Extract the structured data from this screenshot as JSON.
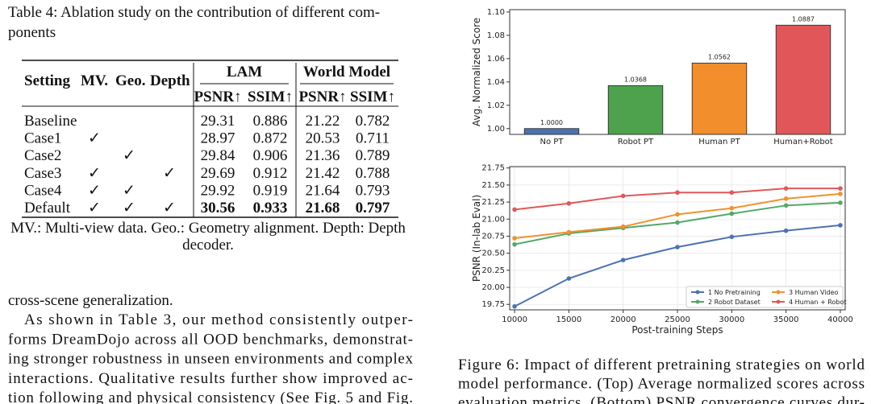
{
  "table_caption": [
    "Table 4: Ablation study on the contribution of different com-",
    "ponents"
  ],
  "table": {
    "header": [
      "Setting",
      "MV.",
      "Geo.",
      "Depth"
    ],
    "groups": [
      "LAM",
      "World Model"
    ],
    "subheader": [
      "PSNR↑",
      "SSIM↑",
      "PSNR↑",
      "SSIM↑"
    ],
    "rows": [
      [
        "Baseline",
        null,
        null,
        null,
        "29.31",
        "0.886",
        "21.22",
        "0.782"
      ],
      [
        "Case1",
        "✓",
        null,
        null,
        "28.97",
        "0.872",
        "20.53",
        "0.711"
      ],
      [
        "Case2",
        null,
        "✓",
        null,
        "29.84",
        "0.906",
        "21.36",
        "0.789"
      ],
      [
        "Case3",
        "✓",
        null,
        "✓",
        "29.69",
        "0.912",
        "21.42",
        "0.788"
      ],
      [
        "Case4",
        "✓",
        "✓",
        null,
        "29.92",
        "0.919",
        "21.64",
        "0.793"
      ],
      [
        "Default",
        "✓",
        "✓",
        "✓",
        "30.56",
        "0.933",
        "21.68",
        "0.797"
      ]
    ]
  },
  "table_note": [
    "MV.: Multi-view data. Geo.: Geometry alignment. Depth: Depth",
    "decoder."
  ],
  "body_text": [
    "cross-scene generalization.",
    "As shown in Table 3, our method consistently outper-",
    "forms DreamDojo across all OOD benchmarks, demonstrat-",
    "ing stronger robustness in unseen environments and complex",
    "interactions. Qualitative results further show improved ac-",
    "tion following and physical consistency (See Fig. 5 and Fig."
  ],
  "chart_data": [
    {
      "type": "bar",
      "ylabel": "Avg. Normalized Score",
      "categories": [
        "No PT",
        "Robot PT",
        "Human PT",
        "Human+Robot"
      ],
      "values": [
        1.0,
        1.0368,
        1.0562,
        1.0887
      ],
      "value_labels": [
        "1.0000",
        "1.0368",
        "1.0562",
        "1.0887"
      ],
      "colors": [
        "#4c72b0",
        "#4ea24e",
        "#f28e2b",
        "#e15759"
      ],
      "ylim": [
        0.995,
        1.102
      ],
      "yticks": [
        {
          "value": 1.0,
          "label": "1.00"
        },
        {
          "value": 1.02,
          "label": "1.02"
        },
        {
          "value": 1.04,
          "label": "1.04"
        },
        {
          "value": 1.06,
          "label": "1.06"
        },
        {
          "value": 1.08,
          "label": "1.08"
        },
        {
          "value": 1.1,
          "label": "1.10"
        }
      ],
      "grid": false
    },
    {
      "type": "line",
      "xlabel": "Post-training Steps",
      "ylabel": "PSNR (In-lab Eval)",
      "x": [
        10000,
        15000,
        20000,
        25000,
        30000,
        35000,
        40000
      ],
      "series": [
        {
          "name": "1 No Pretraining",
          "color": "#4c72b0",
          "values": [
            19.72,
            20.13,
            20.4,
            20.59,
            20.74,
            20.83,
            20.91
          ]
        },
        {
          "name": "2 Robot Dataset",
          "color": "#55a868",
          "values": [
            20.63,
            20.79,
            20.87,
            20.95,
            21.08,
            21.2,
            21.24
          ]
        },
        {
          "name": "3 Human Video",
          "color": "#f0922e",
          "values": [
            20.72,
            20.81,
            20.89,
            21.07,
            21.16,
            21.3,
            21.37
          ]
        },
        {
          "name": "4 Human + Robot",
          "color": "#e15759",
          "values": [
            21.14,
            21.23,
            21.34,
            21.39,
            21.39,
            21.45,
            21.45
          ]
        }
      ],
      "xlim": [
        9550,
        40450
      ],
      "xticks": [
        10000,
        15000,
        20000,
        25000,
        30000,
        35000,
        40000
      ],
      "ylim": [
        19.67,
        21.77
      ],
      "yticks": [
        19.75,
        {
          "value": 20.0,
          "label": "20.00"
        },
        20.25,
        {
          "value": 20.5,
          "label": "20.50"
        },
        20.75,
        {
          "value": 21.0,
          "label": "21.00"
        },
        21.25,
        {
          "value": 21.5,
          "label": "21.50"
        },
        21.75
      ],
      "grid": true,
      "legend": "lower right"
    }
  ],
  "figure_caption": [
    "Figure 6: Impact of different pretraining strategies on world",
    "model performance. (Top) Average normalized scores across",
    "evaluation metrics. (Bottom) PSNR convergence curves dur-"
  ]
}
